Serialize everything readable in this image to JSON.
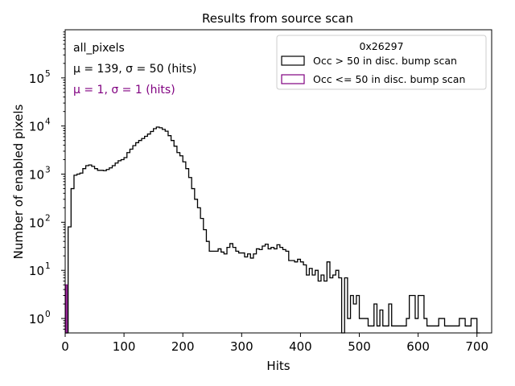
{
  "chart_data": {
    "type": "histogram",
    "title": "Results from source scan",
    "xlabel": "Hits",
    "ylabel": "Number of enabled pixels",
    "xlim": [
      0,
      725
    ],
    "ylim_log10": [
      -0.3,
      6.0
    ],
    "yscale": "log",
    "x_ticks": [
      0,
      100,
      200,
      300,
      400,
      500,
      600,
      700
    ],
    "x_tick_labels": [
      "0",
      "100",
      "200",
      "300",
      "400",
      "500",
      "600",
      "700"
    ],
    "y_ticks_log10": [
      0,
      1,
      2,
      3,
      4,
      5
    ],
    "y_tick_base": "10",
    "y_tick_exponents": [
      "0",
      "1",
      "2",
      "3",
      "4",
      "5"
    ],
    "annotations": [
      {
        "text": "all_pixels",
        "color": "#000000"
      },
      {
        "text": "μ = 139, σ = 50 (hits)",
        "color": "#000000"
      },
      {
        "text": "μ = 1, σ = 1 (hits)",
        "color": "#800080"
      }
    ],
    "legend": {
      "title": "0x26297",
      "placement": "top-right",
      "entries": [
        "Occ > 50 in disc. bump scan",
        "Occ <= 50 in disc. bump scan"
      ]
    },
    "bin_width": 5,
    "series": [
      {
        "name": "Occ > 50 in disc. bump scan",
        "color": "#000000",
        "bins": [
          [
            0,
            5,
            0.2
          ],
          [
            5,
            10,
            80
          ],
          [
            10,
            15,
            500
          ],
          [
            15,
            20,
            950
          ],
          [
            20,
            25,
            1000
          ],
          [
            25,
            30,
            1050
          ],
          [
            30,
            35,
            1300
          ],
          [
            35,
            40,
            1500
          ],
          [
            40,
            45,
            1550
          ],
          [
            45,
            50,
            1450
          ],
          [
            50,
            55,
            1300
          ],
          [
            55,
            60,
            1200
          ],
          [
            60,
            65,
            1200
          ],
          [
            65,
            70,
            1180
          ],
          [
            70,
            75,
            1250
          ],
          [
            75,
            80,
            1350
          ],
          [
            80,
            85,
            1500
          ],
          [
            85,
            90,
            1700
          ],
          [
            90,
            95,
            1900
          ],
          [
            95,
            100,
            2000
          ],
          [
            100,
            105,
            2200
          ],
          [
            105,
            110,
            2800
          ],
          [
            110,
            115,
            3300
          ],
          [
            115,
            120,
            3900
          ],
          [
            120,
            125,
            4500
          ],
          [
            125,
            130,
            5000
          ],
          [
            130,
            135,
            5500
          ],
          [
            135,
            140,
            6100
          ],
          [
            140,
            145,
            6800
          ],
          [
            145,
            150,
            7700
          ],
          [
            150,
            155,
            8800
          ],
          [
            155,
            160,
            9500
          ],
          [
            160,
            165,
            9200
          ],
          [
            165,
            170,
            8500
          ],
          [
            170,
            175,
            7800
          ],
          [
            175,
            180,
            6300
          ],
          [
            180,
            185,
            5000
          ],
          [
            185,
            190,
            3800
          ],
          [
            190,
            195,
            2800
          ],
          [
            195,
            200,
            2400
          ],
          [
            200,
            205,
            1800
          ],
          [
            205,
            210,
            1300
          ],
          [
            210,
            215,
            850
          ],
          [
            215,
            220,
            500
          ],
          [
            220,
            225,
            300
          ],
          [
            225,
            230,
            200
          ],
          [
            230,
            235,
            120
          ],
          [
            235,
            240,
            70
          ],
          [
            240,
            245,
            40
          ],
          [
            245,
            250,
            25
          ],
          [
            250,
            255,
            25
          ],
          [
            255,
            260,
            25
          ],
          [
            260,
            265,
            28
          ],
          [
            265,
            270,
            24
          ],
          [
            270,
            275,
            22
          ],
          [
            275,
            280,
            30
          ],
          [
            280,
            285,
            36
          ],
          [
            285,
            290,
            30
          ],
          [
            290,
            295,
            25
          ],
          [
            295,
            300,
            23
          ],
          [
            300,
            305,
            23
          ],
          [
            305,
            310,
            19
          ],
          [
            310,
            315,
            22
          ],
          [
            315,
            320,
            18
          ],
          [
            320,
            325,
            22
          ],
          [
            325,
            330,
            28
          ],
          [
            330,
            335,
            27
          ],
          [
            335,
            340,
            32
          ],
          [
            340,
            345,
            35
          ],
          [
            345,
            350,
            28
          ],
          [
            350,
            355,
            30
          ],
          [
            355,
            360,
            28
          ],
          [
            360,
            365,
            34
          ],
          [
            365,
            370,
            30
          ],
          [
            370,
            375,
            27
          ],
          [
            375,
            380,
            25
          ],
          [
            380,
            385,
            16
          ],
          [
            385,
            390,
            16
          ],
          [
            390,
            395,
            15
          ],
          [
            395,
            400,
            17
          ],
          [
            400,
            405,
            15
          ],
          [
            405,
            410,
            13
          ],
          [
            410,
            415,
            8
          ],
          [
            415,
            420,
            11
          ],
          [
            420,
            425,
            8
          ],
          [
            425,
            430,
            10
          ],
          [
            430,
            435,
            6
          ],
          [
            435,
            440,
            8
          ],
          [
            440,
            445,
            6
          ],
          [
            445,
            450,
            15
          ],
          [
            450,
            455,
            7
          ],
          [
            455,
            460,
            8
          ],
          [
            460,
            465,
            10
          ],
          [
            465,
            470,
            7
          ],
          [
            470,
            475,
            0.2
          ],
          [
            475,
            480,
            7
          ],
          [
            480,
            485,
            1
          ],
          [
            485,
            490,
            3
          ],
          [
            490,
            495,
            2
          ],
          [
            495,
            500,
            3
          ],
          [
            500,
            505,
            1
          ],
          [
            505,
            510,
            1
          ],
          [
            510,
            515,
            1
          ],
          [
            515,
            520,
            0.7
          ],
          [
            520,
            525,
            0.7
          ],
          [
            525,
            530,
            2
          ],
          [
            530,
            535,
            0.7
          ],
          [
            535,
            540,
            1.5
          ],
          [
            540,
            545,
            0.7
          ],
          [
            545,
            550,
            0.7
          ],
          [
            550,
            555,
            2
          ],
          [
            555,
            560,
            0.7
          ],
          [
            560,
            565,
            0.7
          ],
          [
            565,
            570,
            0.7
          ],
          [
            570,
            575,
            0.7
          ],
          [
            575,
            580,
            0.7
          ],
          [
            580,
            585,
            1
          ],
          [
            585,
            590,
            3
          ],
          [
            590,
            595,
            3
          ],
          [
            595,
            600,
            1
          ],
          [
            600,
            605,
            3
          ],
          [
            605,
            610,
            3
          ],
          [
            610,
            615,
            1
          ],
          [
            615,
            620,
            0.7
          ],
          [
            620,
            625,
            0.7
          ],
          [
            625,
            630,
            0.7
          ],
          [
            630,
            635,
            0.7
          ],
          [
            635,
            640,
            1
          ],
          [
            640,
            645,
            1
          ],
          [
            645,
            650,
            0.7
          ],
          [
            650,
            655,
            0.7
          ],
          [
            655,
            660,
            0.7
          ],
          [
            660,
            665,
            0.7
          ],
          [
            665,
            670,
            0.7
          ],
          [
            670,
            675,
            1
          ],
          [
            675,
            680,
            1
          ],
          [
            680,
            685,
            0.7
          ],
          [
            685,
            690,
            0.7
          ],
          [
            690,
            695,
            1
          ],
          [
            695,
            700,
            1
          ],
          [
            700,
            705,
            0.2
          ]
        ]
      },
      {
        "name": "Occ <= 50 in disc. bump scan",
        "color": "#800080",
        "bins": [
          [
            0,
            1,
            0.2
          ],
          [
            1,
            3,
            5
          ],
          [
            3,
            4,
            0.2
          ]
        ]
      }
    ]
  }
}
